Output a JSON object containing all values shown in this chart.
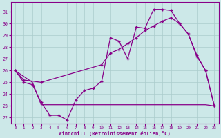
{
  "xlabel": "Windchill (Refroidissement éolien,°C)",
  "background_color": "#cce8e8",
  "grid_color": "#aacccc",
  "line_color": "#880088",
  "x_hours": [
    0,
    1,
    2,
    3,
    4,
    5,
    6,
    7,
    8,
    9,
    10,
    11,
    12,
    13,
    14,
    15,
    16,
    17,
    18,
    19,
    20,
    21,
    22,
    23
  ],
  "line1_x": [
    0,
    1,
    2,
    3,
    4,
    5,
    6,
    7,
    8,
    9,
    10,
    11,
    12,
    13,
    14,
    15,
    16,
    17,
    18,
    19,
    20,
    21,
    22,
    23
  ],
  "line1_y": [
    26,
    25,
    24.8,
    23.3,
    22.2,
    22.2,
    21.8,
    23.5,
    24.3,
    24.5,
    25.1,
    28.8,
    28.5,
    27.0,
    29.7,
    29.6,
    31.2,
    31.2,
    31.1,
    30.0,
    29.1,
    27.2,
    26.0,
    23.0
  ],
  "line2_x": [
    0,
    1,
    3,
    10,
    11,
    12,
    13,
    14,
    15,
    16,
    17,
    18,
    19,
    20,
    21,
    22,
    23
  ],
  "line2_y": [
    26,
    25.2,
    25.0,
    26.5,
    27.5,
    27.8,
    28.3,
    28.8,
    29.4,
    29.8,
    30.2,
    30.5,
    30.0,
    29.1,
    27.3,
    26.0,
    23.0
  ],
  "line3_x": [
    0,
    2,
    3,
    6,
    22,
    23
  ],
  "line3_y": [
    26,
    25.0,
    23.1,
    23.1,
    23.1,
    23.0
  ],
  "ylim": [
    21.5,
    31.8
  ],
  "yticks": [
    22,
    23,
    24,
    25,
    26,
    27,
    28,
    29,
    30,
    31
  ],
  "xticks": [
    0,
    1,
    2,
    3,
    4,
    5,
    6,
    7,
    8,
    9,
    10,
    11,
    12,
    13,
    14,
    15,
    16,
    17,
    18,
    19,
    20,
    21,
    22,
    23
  ]
}
